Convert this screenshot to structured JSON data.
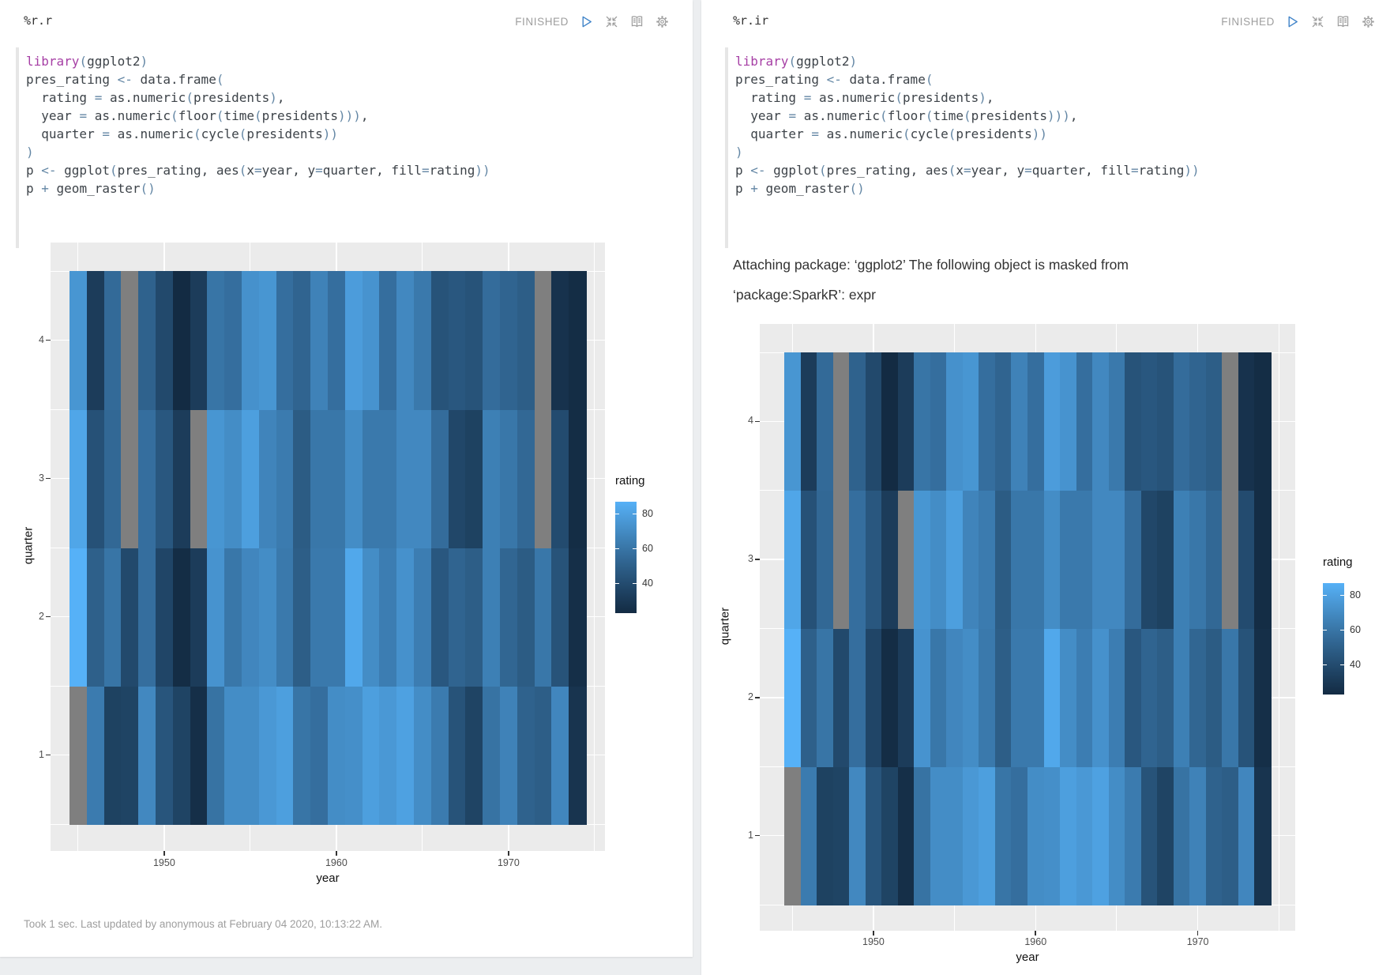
{
  "colors": {
    "status_gray": "#9E9E9E",
    "play_blue": "#4285C9",
    "keyword": "#A63FA5",
    "operator": "#6487A5",
    "code_text": "#3D4349",
    "panel_gray": "#EBEBEB",
    "page_bg": "#ECEEF0"
  },
  "toolbar_icons": [
    "play-icon",
    "collapse-icon",
    "book-icon",
    "gear-icon"
  ],
  "left_paragraph": {
    "title": "%r.r",
    "status": "FINISHED",
    "footer": "Took 1 sec. Last updated by anonymous at February 04 2020, 10:13:22 AM."
  },
  "right_paragraph": {
    "title": "%r.ir",
    "status": "FINISHED",
    "message": "Attaching package: ‘ggplot2’ The following object is masked from ‘package:SparkR’: expr"
  },
  "code_lines": [
    [
      [
        "k",
        "library"
      ],
      [
        "o",
        "("
      ],
      [
        "t",
        "ggplot2"
      ],
      [
        "o",
        ")"
      ]
    ],
    [
      [
        "t",
        "pres_rating "
      ],
      [
        "o",
        "<-"
      ],
      [
        "t",
        " data.frame"
      ],
      [
        "o",
        "("
      ]
    ],
    [
      [
        "t",
        "  rating "
      ],
      [
        "o",
        "="
      ],
      [
        "t",
        " as.numeric"
      ],
      [
        "o",
        "("
      ],
      [
        "t",
        "presidents"
      ],
      [
        "o",
        ")"
      ],
      [
        "t",
        ","
      ]
    ],
    [
      [
        "t",
        "  year "
      ],
      [
        "o",
        "="
      ],
      [
        "t",
        " as.numeric"
      ],
      [
        "o",
        "("
      ],
      [
        "t",
        "floor"
      ],
      [
        "o",
        "("
      ],
      [
        "t",
        "time"
      ],
      [
        "o",
        "("
      ],
      [
        "t",
        "presidents"
      ],
      [
        "o",
        ")))"
      ],
      [
        "t",
        ","
      ]
    ],
    [
      [
        "t",
        "  quarter "
      ],
      [
        "o",
        "="
      ],
      [
        "t",
        " as.numeric"
      ],
      [
        "o",
        "("
      ],
      [
        "t",
        "cycle"
      ],
      [
        "o",
        "("
      ],
      [
        "t",
        "presidents"
      ],
      [
        "o",
        "))"
      ]
    ],
    [
      [
        "o",
        ")"
      ]
    ],
    [
      [
        "t",
        "p "
      ],
      [
        "o",
        "<-"
      ],
      [
        "t",
        " ggplot"
      ],
      [
        "o",
        "("
      ],
      [
        "t",
        "pres_rating, aes"
      ],
      [
        "o",
        "("
      ],
      [
        "t",
        "x"
      ],
      [
        "o",
        "="
      ],
      [
        "t",
        "year, y"
      ],
      [
        "o",
        "="
      ],
      [
        "t",
        "quarter, fill"
      ],
      [
        "o",
        "="
      ],
      [
        "t",
        "rating"
      ],
      [
        "o",
        "))"
      ]
    ],
    [
      [
        "t",
        "p "
      ],
      [
        "o",
        "+"
      ],
      [
        "t",
        " geom_raster"
      ],
      [
        "o",
        "()"
      ]
    ]
  ],
  "chart_data": {
    "type": "heatmap",
    "title": "",
    "xlabel": "year",
    "ylabel": "quarter",
    "legend_title": "rating",
    "x_ticks": [
      1950,
      1960,
      1970
    ],
    "x_minor": [
      1945,
      1955,
      1965,
      1975
    ],
    "y_ticks": [
      1,
      2,
      3,
      4
    ],
    "y_minor": [
      0.5,
      1.5,
      2.5,
      3.5,
      4.5
    ],
    "x_range": [
      1944.5,
      1974.5
    ],
    "y_range": [
      0.5,
      4.5
    ],
    "legend_ticks": [
      80,
      60,
      40
    ],
    "fill_domain": [
      23,
      87
    ],
    "gradient_low": "#132B43",
    "gradient_high": "#56B1F7",
    "na_color": "#7F7F7F",
    "years": [
      1945,
      1946,
      1947,
      1948,
      1949,
      1950,
      1951,
      1952,
      1953,
      1954,
      1955,
      1956,
      1957,
      1958,
      1959,
      1960,
      1961,
      1962,
      1963,
      1964,
      1965,
      1966,
      1967,
      1968,
      1969,
      1970,
      1971,
      1972,
      1973,
      1974
    ],
    "quarters": [
      1,
      2,
      3,
      4
    ],
    "values": [
      [
        null,
        87,
        82,
        75
      ],
      [
        63,
        50,
        43,
        32
      ],
      [
        35,
        60,
        54,
        55
      ],
      [
        36,
        39,
        null,
        null
      ],
      [
        69,
        57,
        57,
        51
      ],
      [
        45,
        37,
        46,
        39
      ],
      [
        36,
        24,
        32,
        23
      ],
      [
        25,
        32,
        null,
        32
      ],
      [
        59,
        74,
        75,
        60
      ],
      [
        71,
        61,
        71,
        57
      ],
      [
        71,
        68,
        79,
        73
      ],
      [
        76,
        71,
        67,
        75
      ],
      [
        79,
        62,
        63,
        57
      ],
      [
        60,
        49,
        48,
        52
      ],
      [
        57,
        62,
        61,
        66
      ],
      [
        71,
        62,
        61,
        57
      ],
      [
        72,
        83,
        71,
        78
      ],
      [
        79,
        71,
        62,
        74
      ],
      [
        76,
        64,
        62,
        57
      ],
      [
        80,
        73,
        69,
        69
      ],
      [
        71,
        64,
        69,
        62
      ],
      [
        63,
        46,
        56,
        44
      ],
      [
        44,
        52,
        38,
        46
      ],
      [
        36,
        49,
        35,
        44
      ],
      [
        59,
        65,
        65,
        56
      ],
      [
        66,
        53,
        61,
        52
      ],
      [
        51,
        48,
        54,
        49
      ],
      [
        49,
        61,
        null,
        null
      ],
      [
        68,
        44,
        40,
        27
      ],
      [
        28,
        25,
        24,
        24
      ]
    ]
  }
}
